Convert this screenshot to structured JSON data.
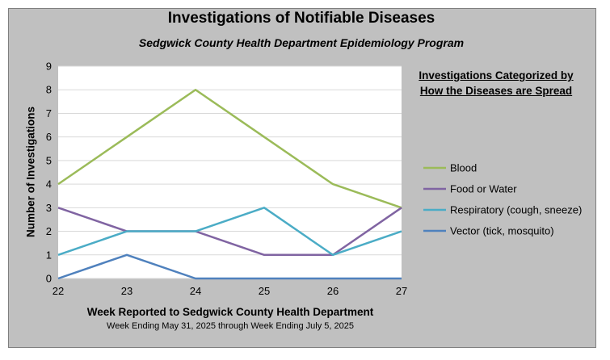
{
  "chart_data": {
    "type": "line",
    "title": "Investigations of Notifiable Diseases",
    "subtitle": "Sedgwick County Health Department Epidemiology Program",
    "xlabel": "Week Reported to Sedgwick County Health Department",
    "xsublabel": "Week Ending  May 31, 2025 through Week Ending  July 5, 2025",
    "ylabel": "Number of Investigations",
    "legend_title": "Investigations Categorized by How the Diseases are Spread",
    "legend_position": "right",
    "grid": true,
    "ylim": [
      0,
      9
    ],
    "yticks": [
      0,
      1,
      2,
      3,
      4,
      5,
      6,
      7,
      8,
      9
    ],
    "x": [
      22,
      23,
      24,
      25,
      26,
      27
    ],
    "series": [
      {
        "name": "Blood",
        "color": "#9bbb59",
        "values": [
          4,
          6,
          8,
          6,
          4,
          3
        ]
      },
      {
        "name": "Food or Water",
        "color": "#8064a2",
        "values": [
          3,
          2,
          2,
          1,
          1,
          3
        ]
      },
      {
        "name": "Respiratory (cough, sneeze)",
        "color": "#4bacc6",
        "values": [
          1,
          2,
          2,
          3,
          1,
          2
        ]
      },
      {
        "name": "Vector (tick, mosquito)",
        "color": "#4f81bd",
        "values": [
          0,
          1,
          0,
          0,
          0,
          0
        ]
      }
    ]
  }
}
